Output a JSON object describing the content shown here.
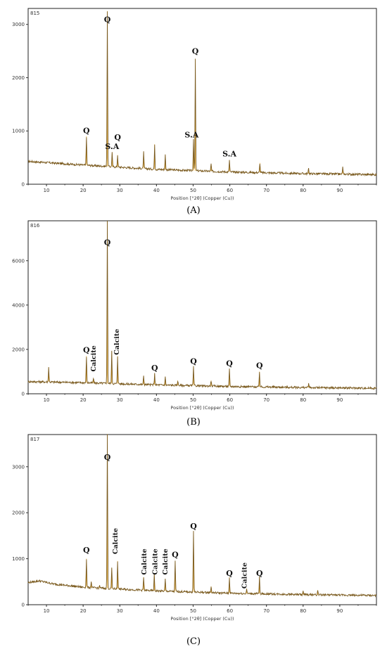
{
  "chart_data": [
    {
      "type": "line",
      "panel": "(A)",
      "sample_id": "815",
      "xlabel": "Position [°2θ] (Copper (Cu))",
      "ylabel": "",
      "xlim": [
        5,
        100
      ],
      "ylim": [
        0,
        3300
      ],
      "xticks": [
        10,
        20,
        30,
        40,
        50,
        60,
        70,
        80,
        90
      ],
      "yticks": [
        0,
        1000,
        2000,
        3000
      ],
      "baseline": [
        [
          5,
          430
        ],
        [
          20,
          360
        ],
        [
          40,
          280
        ],
        [
          60,
          230
        ],
        [
          80,
          200
        ],
        [
          100,
          180
        ]
      ],
      "peaks": [
        {
          "x": 20.9,
          "y": 900
        },
        {
          "x": 26.6,
          "y": 3250
        },
        {
          "x": 27.9,
          "y": 600
        },
        {
          "x": 29.4,
          "y": 550
        },
        {
          "x": 36.5,
          "y": 600
        },
        {
          "x": 39.5,
          "y": 750
        },
        {
          "x": 42.4,
          "y": 550
        },
        {
          "x": 50.1,
          "y": 850
        },
        {
          "x": 50.6,
          "y": 2350
        },
        {
          "x": 54.9,
          "y": 380
        },
        {
          "x": 59.9,
          "y": 450
        },
        {
          "x": 68.2,
          "y": 400
        },
        {
          "x": 81.5,
          "y": 300
        },
        {
          "x": 90.8,
          "y": 320
        }
      ],
      "annotations": [
        {
          "text": "Q",
          "x": 20.9,
          "y": 960
        },
        {
          "text": "Q",
          "x": 26.6,
          "y": 3040
        },
        {
          "text": "S.A",
          "x": 27.9,
          "y": 660
        },
        {
          "text": "Q",
          "x": 29.4,
          "y": 830
        },
        {
          "text": "S.A",
          "x": 49.6,
          "y": 880
        },
        {
          "text": "Q",
          "x": 50.6,
          "y": 2450
        },
        {
          "text": "S.A",
          "x": 59.9,
          "y": 520
        }
      ]
    },
    {
      "type": "line",
      "panel": "(B)",
      "sample_id": "816",
      "xlabel": "Position [°2θ] (Copper (Cu))",
      "ylabel": "",
      "xlim": [
        5,
        100
      ],
      "ylim": [
        0,
        7800
      ],
      "xticks": [
        10,
        20,
        30,
        40,
        50,
        60,
        70,
        80,
        90
      ],
      "yticks": [
        0,
        2000,
        4000,
        6000
      ],
      "baseline": [
        [
          5,
          550
        ],
        [
          20,
          500
        ],
        [
          40,
          400
        ],
        [
          60,
          330
        ],
        [
          80,
          280
        ],
        [
          100,
          250
        ]
      ],
      "peaks": [
        {
          "x": 10.6,
          "y": 1200
        },
        {
          "x": 20.9,
          "y": 1700
        },
        {
          "x": 22.8,
          "y": 700
        },
        {
          "x": 26.6,
          "y": 7800
        },
        {
          "x": 27.8,
          "y": 1900
        },
        {
          "x": 29.4,
          "y": 1700
        },
        {
          "x": 36.5,
          "y": 800
        },
        {
          "x": 39.5,
          "y": 900
        },
        {
          "x": 42.4,
          "y": 750
        },
        {
          "x": 45.8,
          "y": 600
        },
        {
          "x": 50.1,
          "y": 1200
        },
        {
          "x": 54.9,
          "y": 600
        },
        {
          "x": 59.9,
          "y": 1100
        },
        {
          "x": 68.1,
          "y": 1000
        },
        {
          "x": 81.5,
          "y": 450
        }
      ],
      "annotations": [
        {
          "text": "Q",
          "x": 20.9,
          "y": 1850
        },
        {
          "text": "Calcite",
          "x": 23.4,
          "y": 1000,
          "rotated": true
        },
        {
          "text": "Q",
          "x": 26.6,
          "y": 6700
        },
        {
          "text": "Calcite",
          "x": 29.8,
          "y": 1750,
          "rotated": true
        },
        {
          "text": "Q",
          "x": 39.5,
          "y": 1050
        },
        {
          "text": "Q",
          "x": 50.1,
          "y": 1350
        },
        {
          "text": "Q",
          "x": 59.9,
          "y": 1250
        },
        {
          "text": "Q",
          "x": 68.1,
          "y": 1150
        }
      ]
    },
    {
      "type": "line",
      "panel": "(C)",
      "sample_id": "817",
      "xlabel": "Position [°2θ] (Copper (Cu))",
      "ylabel": "",
      "xlim": [
        5,
        100
      ],
      "ylim": [
        0,
        3700
      ],
      "xticks": [
        10,
        20,
        30,
        40,
        50,
        60,
        70,
        80,
        90
      ],
      "yticks": [
        0,
        1000,
        2000,
        3000
      ],
      "baseline": [
        [
          5,
          480
        ],
        [
          8,
          520
        ],
        [
          12,
          450
        ],
        [
          20,
          380
        ],
        [
          40,
          300
        ],
        [
          60,
          250
        ],
        [
          80,
          220
        ],
        [
          100,
          200
        ]
      ],
      "peaks": [
        {
          "x": 20.9,
          "y": 1000
        },
        {
          "x": 22.2,
          "y": 500
        },
        {
          "x": 24.5,
          "y": 420
        },
        {
          "x": 26.6,
          "y": 3700
        },
        {
          "x": 27.8,
          "y": 800
        },
        {
          "x": 29.4,
          "y": 950
        },
        {
          "x": 36.5,
          "y": 600
        },
        {
          "x": 39.4,
          "y": 650
        },
        {
          "x": 42.4,
          "y": 550
        },
        {
          "x": 45.1,
          "y": 950
        },
        {
          "x": 50.1,
          "y": 1600
        },
        {
          "x": 54.9,
          "y": 400
        },
        {
          "x": 59.9,
          "y": 600
        },
        {
          "x": 64.6,
          "y": 350
        },
        {
          "x": 68.1,
          "y": 600
        },
        {
          "x": 80.0,
          "y": 300
        },
        {
          "x": 84.0,
          "y": 320
        }
      ],
      "annotations": [
        {
          "text": "Q",
          "x": 20.9,
          "y": 1130
        },
        {
          "text": "Q",
          "x": 26.6,
          "y": 3150
        },
        {
          "text": "Calcite",
          "x": 29.4,
          "y": 1100,
          "rotated": true
        },
        {
          "text": "Calcite",
          "x": 37.2,
          "y": 650,
          "rotated": true
        },
        {
          "text": "Calcite",
          "x": 40.2,
          "y": 650,
          "rotated": true
        },
        {
          "text": "Calcite",
          "x": 43.0,
          "y": 650,
          "rotated": true
        },
        {
          "text": "Q",
          "x": 45.1,
          "y": 1030
        },
        {
          "text": "Q",
          "x": 50.1,
          "y": 1650
        },
        {
          "text": "Q",
          "x": 59.9,
          "y": 630
        },
        {
          "text": "Calcite",
          "x": 64.6,
          "y": 350,
          "rotated": true
        },
        {
          "text": "Q",
          "x": 68.1,
          "y": 630
        }
      ]
    }
  ],
  "panel_labels": {
    "a": "(A)",
    "b": "(B)",
    "c": "(C)"
  }
}
